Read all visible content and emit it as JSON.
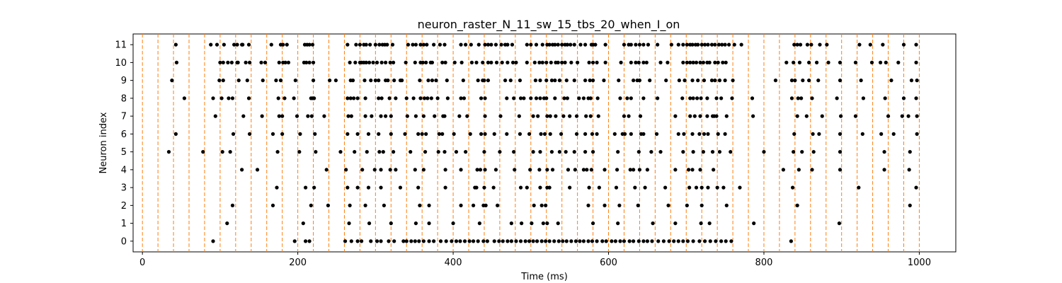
{
  "chart_data": {
    "type": "scatter",
    "title": "neuron_raster_N_11_sw_15_tbs_20_when_I_on",
    "xlabel": "Time (ms)",
    "ylabel": "Neuron index",
    "xlim": [
      -12,
      1047
    ],
    "ylim": [
      -0.6,
      11.6
    ],
    "xticks": [
      0,
      200,
      400,
      600,
      800,
      1000
    ],
    "yticks": [
      0,
      1,
      2,
      3,
      4,
      5,
      6,
      7,
      8,
      9,
      10,
      11
    ],
    "grid": false,
    "colors": {
      "spike": "#000000",
      "window_line": "#ff7f0e",
      "axes": "#000000"
    },
    "window_lines": [
      0,
      20,
      40,
      60,
      80,
      100,
      120,
      140,
      160,
      180,
      200,
      220,
      240,
      260,
      280,
      300,
      320,
      340,
      360,
      380,
      400,
      420,
      440,
      460,
      480,
      500,
      520,
      540,
      560,
      580,
      600,
      620,
      640,
      660,
      680,
      700,
      720,
      740,
      760,
      780,
      800,
      820,
      840,
      860,
      880,
      900,
      920,
      940,
      960,
      980,
      1000
    ],
    "series": [
      {
        "neuron": 11,
        "spikes": [
          43,
          88,
          96,
          105,
          118,
          122,
          128,
          129,
          137,
          166,
          178,
          181,
          186,
          209,
          212,
          215,
          219,
          264,
          275,
          280,
          285,
          288,
          293,
          300,
          305,
          309,
          312,
          315,
          322,
          342,
          348,
          352,
          358,
          362,
          366,
          375,
          383,
          389,
          410,
          416,
          423,
          433,
          441,
          445,
          449,
          455,
          462,
          467,
          470,
          476,
          495,
          500,
          507,
          515,
          521,
          524,
          528,
          531,
          535,
          540,
          544,
          547,
          551,
          556,
          564,
          570,
          578,
          580,
          583,
          596,
          620,
          626,
          629,
          635,
          640,
          645,
          651,
          663,
          681,
          690,
          696,
          701,
          705,
          708,
          712,
          715,
          720,
          724,
          728,
          733,
          737,
          742,
          746,
          750,
          755,
          762,
          771,
          839,
          843,
          847,
          856,
          861,
          872,
          881,
          923,
          937,
          953,
          980,
          996
        ]
      },
      {
        "neuron": 10,
        "spikes": [
          44,
          100,
          104,
          110,
          115,
          122,
          123,
          133,
          138,
          153,
          158,
          176,
          181,
          184,
          188,
          208,
          211,
          215,
          220,
          267,
          274,
          280,
          282,
          285,
          288,
          292,
          297,
          302,
          308,
          313,
          319,
          323,
          339,
          351,
          358,
          361,
          365,
          371,
          373,
          386,
          390,
          402,
          411,
          424,
          430,
          438,
          445,
          449,
          456,
          463,
          470,
          477,
          481,
          495,
          505,
          511,
          515,
          520,
          526,
          532,
          535,
          540,
          544,
          552,
          560,
          575,
          580,
          585,
          596,
          616,
          629,
          635,
          639,
          645,
          649,
          667,
          676,
          696,
          701,
          705,
          709,
          713,
          718,
          722,
          727,
          730,
          737,
          741,
          747,
          751,
          829,
          838,
          846,
          858,
          868,
          883,
          898,
          918,
          939,
          950,
          957,
          973,
          996
        ]
      },
      {
        "neuron": 9,
        "spikes": [
          38,
          99,
          104,
          124,
          135,
          155,
          172,
          178,
          197,
          220,
          241,
          249,
          268,
          271,
          286,
          294,
          300,
          304,
          313,
          316,
          324,
          332,
          334,
          357,
          368,
          373,
          378,
          392,
          413,
          432,
          438,
          440,
          445,
          467,
          474,
          486,
          506,
          512,
          520,
          527,
          531,
          537,
          546,
          556,
          570,
          576,
          580,
          594,
          613,
          632,
          637,
          640,
          653,
          674,
          691,
          698,
          708,
          715,
          723,
          733,
          737,
          743,
          750,
          760,
          815,
          836,
          840,
          850,
          858,
          870,
          898,
          925,
          964,
          990,
          997
        ]
      },
      {
        "neuron": 8,
        "spikes": [
          54,
          91,
          102,
          111,
          116,
          137,
          175,
          183,
          195,
          217,
          219,
          221,
          264,
          268,
          272,
          277,
          287,
          304,
          308,
          318,
          326,
          340,
          349,
          358,
          363,
          367,
          372,
          380,
          393,
          410,
          414,
          436,
          441,
          469,
          478,
          487,
          491,
          500,
          507,
          512,
          517,
          520,
          531,
          543,
          547,
          562,
          568,
          574,
          577,
          586,
          615,
          624,
          629,
          645,
          663,
          695,
          705,
          709,
          714,
          719,
          727,
          739,
          745,
          759,
          785,
          836,
          844,
          848,
          862,
          894,
          928,
          956,
          980,
          996
        ]
      },
      {
        "neuron": 7,
        "spikes": [
          94,
          130,
          154,
          176,
          180,
          199,
          213,
          218,
          234,
          265,
          269,
          287,
          295,
          307,
          313,
          320,
          341,
          352,
          362,
          376,
          387,
          389,
          408,
          418,
          441,
          461,
          485,
          503,
          509,
          521,
          525,
          532,
          542,
          550,
          559,
          571,
          577,
          587,
          620,
          626,
          641,
          686,
          705,
          711,
          718,
          727,
          734,
          736,
          739,
          752,
          786,
          843,
          855,
          875,
          899,
          918,
          960,
          978,
          986,
          997
        ]
      },
      {
        "neuron": 6,
        "spikes": [
          43,
          117,
          138,
          168,
          180,
          203,
          222,
          264,
          277,
          291,
          304,
          320,
          338,
          355,
          360,
          365,
          382,
          386,
          401,
          422,
          436,
          441,
          453,
          469,
          486,
          498,
          513,
          518,
          525,
          539,
          559,
          570,
          579,
          585,
          608,
          618,
          621,
          629,
          642,
          645,
          662,
          690,
          697,
          708,
          717,
          723,
          728,
          741,
          750,
          839,
          863,
          871,
          898,
          927,
          951,
          967,
          997
        ]
      },
      {
        "neuron": 5,
        "spikes": [
          34,
          78,
          103,
          113,
          174,
          202,
          223,
          255,
          273,
          289,
          305,
          310,
          323,
          345,
          364,
          381,
          389,
          404,
          416,
          440,
          460,
          478,
          503,
          512,
          527,
          537,
          545,
          556,
          570,
          580,
          612,
          639,
          655,
          667,
          696,
          709,
          722,
          734,
          743,
          757,
          800,
          838,
          849,
          864,
          898,
          955,
          988
        ]
      },
      {
        "neuron": 4,
        "spikes": [
          128,
          148,
          237,
          262,
          283,
          299,
          307,
          319,
          326,
          351,
          362,
          390,
          410,
          431,
          435,
          441,
          455,
          479,
          499,
          511,
          521,
          528,
          548,
          557,
          568,
          572,
          578,
          595,
          611,
          628,
          632,
          640,
          650,
          686,
          703,
          708,
          718,
          735,
          825,
          845,
          862,
          898,
          955,
          987
        ]
      },
      {
        "neuron": 3,
        "spikes": [
          173,
          210,
          221,
          264,
          277,
          291,
          307,
          332,
          355,
          390,
          428,
          430,
          440,
          452,
          487,
          495,
          512,
          521,
          524,
          550,
          575,
          588,
          610,
          634,
          647,
          673,
          704,
          713,
          720,
          728,
          740,
          748,
          769,
          837,
          922,
          996
        ]
      },
      {
        "neuron": 2,
        "spikes": [
          116,
          168,
          217,
          239,
          267,
          287,
          311,
          357,
          369,
          410,
          426,
          439,
          442,
          457,
          504,
          514,
          519,
          574,
          595,
          614,
          638,
          677,
          701,
          720,
          752,
          843,
          988
        ]
      },
      {
        "neuron": 1,
        "spikes": [
          109,
          207,
          266,
          292,
          320,
          352,
          369,
          400,
          434,
          475,
          488,
          501,
          516,
          521,
          535,
          580,
          612,
          657,
          686,
          719,
          730,
          787,
          897
        ]
      },
      {
        "neuron": 0,
        "spikes": [
          91,
          196,
          210,
          215,
          261,
          269,
          277,
          282,
          294,
          302,
          307,
          317,
          324,
          336,
          340,
          346,
          351,
          356,
          362,
          369,
          375,
          384,
          391,
          398,
          404,
          409,
          415,
          421,
          426,
          432,
          439,
          444,
          453,
          459,
          464,
          470,
          475,
          481,
          487,
          493,
          498,
          503,
          508,
          514,
          519,
          524,
          530,
          536,
          541,
          546,
          552,
          558,
          563,
          568,
          574,
          579,
          585,
          592,
          597,
          604,
          609,
          615,
          620,
          627,
          632,
          639,
          645,
          650,
          656,
          664,
          671,
          678,
          684,
          690,
          696,
          702,
          709,
          717,
          724,
          731,
          738,
          745,
          751,
          758,
          835
        ]
      }
    ]
  }
}
